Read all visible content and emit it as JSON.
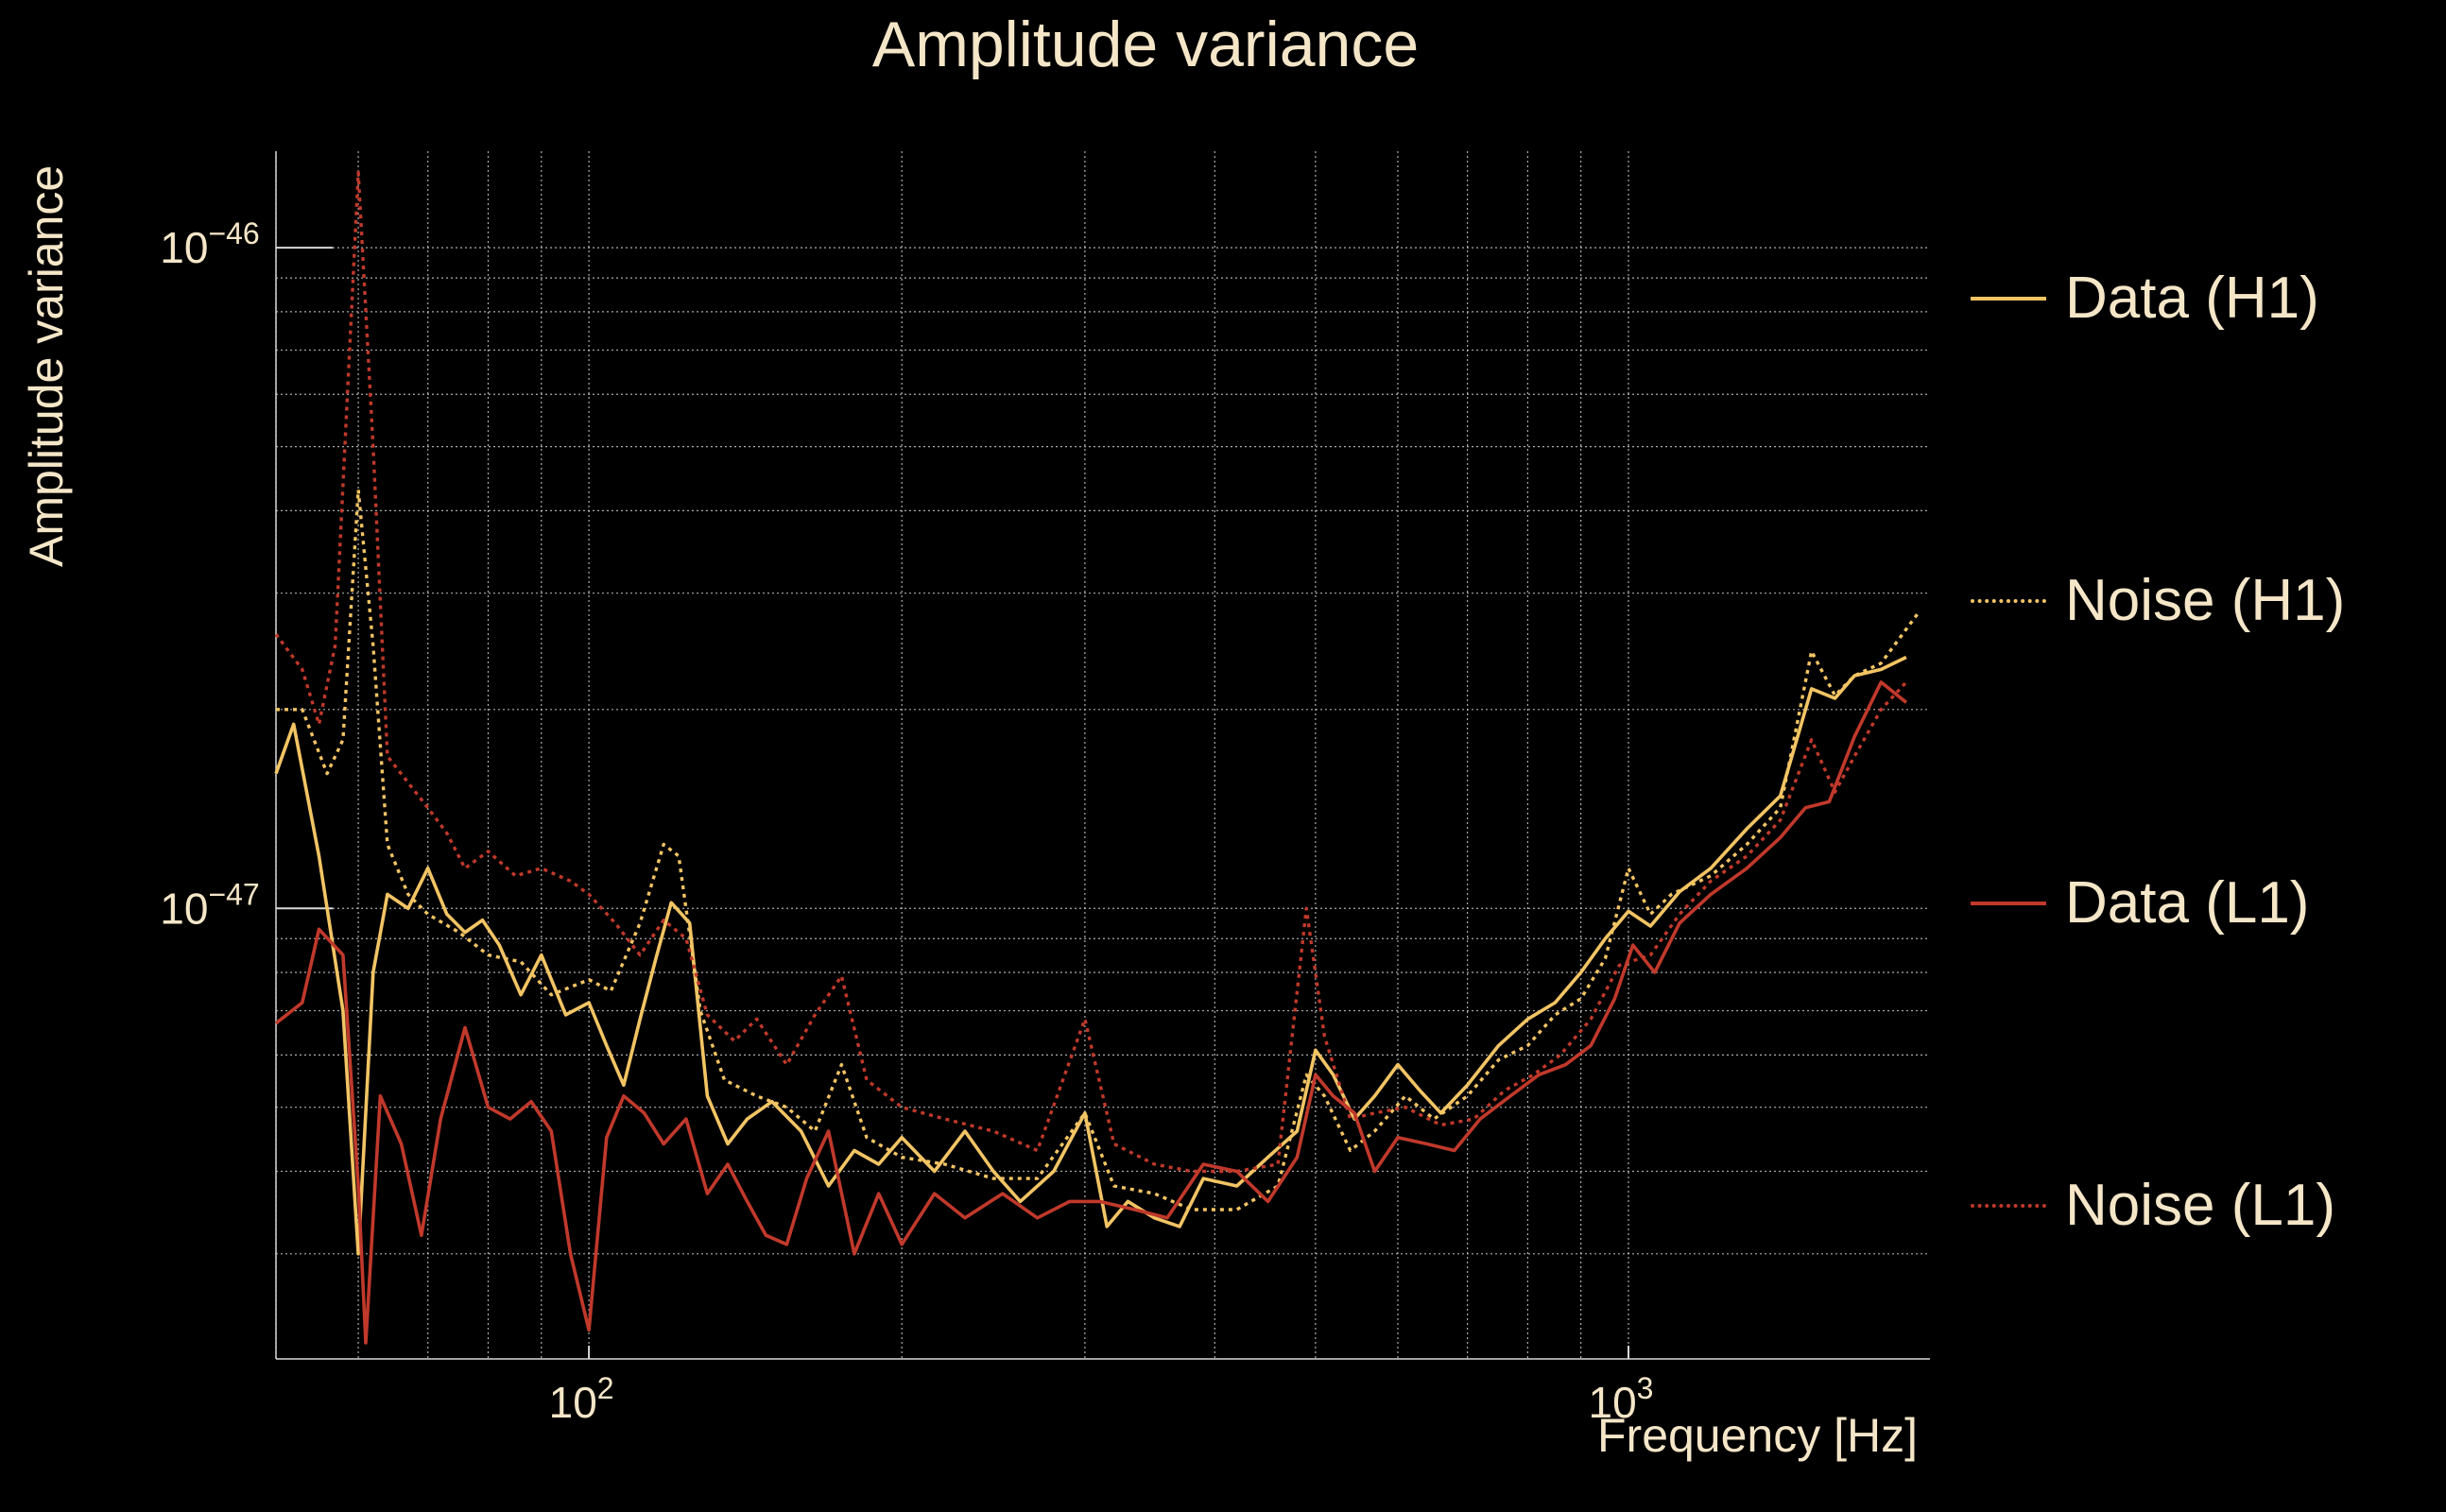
{
  "chart_data": {
    "type": "line",
    "title": "Amplitude variance",
    "xlabel": "Frequency [Hz]",
    "ylabel": "Amplitude variance",
    "xscale": "log",
    "yscale": "log",
    "xlim": [
      50,
      1950
    ],
    "ylim": [
      2.08e-48,
      1.4e-46
    ],
    "x_ticks": [
      {
        "value": 100,
        "base": "10",
        "exp": "2"
      },
      {
        "value": 1000,
        "base": "10",
        "exp": "3"
      }
    ],
    "y_ticks": [
      {
        "value": 1e-47,
        "base": "10",
        "exp": "−47"
      },
      {
        "value": 1e-46,
        "base": "10",
        "exp": "−46"
      }
    ],
    "grid": true,
    "legend_position": "right",
    "series": [
      {
        "name": "Data (H1)",
        "color": "#f2c464",
        "dash": "solid",
        "points": [
          [
            50,
            1.6e-47
          ],
          [
            52,
            1.9e-47
          ],
          [
            55,
            1.2e-47
          ],
          [
            58,
            7e-48
          ],
          [
            60,
            3e-48
          ],
          [
            62,
            8e-48
          ],
          [
            64,
            1.05e-47
          ],
          [
            67,
            1e-47
          ],
          [
            70,
            1.15e-47
          ],
          [
            73,
            9.8e-48
          ],
          [
            76,
            9.2e-48
          ],
          [
            79,
            9.6e-48
          ],
          [
            82,
            8.8e-48
          ],
          [
            86,
            7.4e-48
          ],
          [
            90,
            8.5e-48
          ],
          [
            95,
            6.9e-48
          ],
          [
            100,
            7.2e-48
          ],
          [
            104,
            6.2e-48
          ],
          [
            108,
            5.4e-48
          ],
          [
            112,
            6.8e-48
          ],
          [
            116,
            8.4e-48
          ],
          [
            120,
            1.02e-47
          ],
          [
            125,
            9.5e-48
          ],
          [
            130,
            5.2e-48
          ],
          [
            136,
            4.4e-48
          ],
          [
            142,
            4.8e-48
          ],
          [
            150,
            5.1e-48
          ],
          [
            160,
            4.6e-48
          ],
          [
            170,
            3.8e-48
          ],
          [
            180,
            4.3e-48
          ],
          [
            190,
            4.1e-48
          ],
          [
            200,
            4.5e-48
          ],
          [
            215,
            4e-48
          ],
          [
            230,
            4.6e-48
          ],
          [
            245,
            4e-48
          ],
          [
            260,
            3.6e-48
          ],
          [
            280,
            4e-48
          ],
          [
            300,
            4.9e-48
          ],
          [
            315,
            3.3e-48
          ],
          [
            330,
            3.6e-48
          ],
          [
            350,
            3.4e-48
          ],
          [
            370,
            3.3e-48
          ],
          [
            390,
            3.9e-48
          ],
          [
            420,
            3.8e-48
          ],
          [
            450,
            4.2e-48
          ],
          [
            480,
            4.6e-48
          ],
          [
            500,
            6.1e-48
          ],
          [
            520,
            5.6e-48
          ],
          [
            545,
            4.8e-48
          ],
          [
            570,
            5.2e-48
          ],
          [
            600,
            5.8e-48
          ],
          [
            630,
            5.3e-48
          ],
          [
            660,
            4.9e-48
          ],
          [
            700,
            5.4e-48
          ],
          [
            750,
            6.2e-48
          ],
          [
            800,
            6.8e-48
          ],
          [
            850,
            7.2e-48
          ],
          [
            900,
            8e-48
          ],
          [
            950,
            9e-48
          ],
          [
            1000,
            9.9e-48
          ],
          [
            1050,
            9.4e-48
          ],
          [
            1120,
            1.06e-47
          ],
          [
            1200,
            1.15e-47
          ],
          [
            1300,
            1.32e-47
          ],
          [
            1400,
            1.48e-47
          ],
          [
            1500,
            2.15e-47
          ],
          [
            1580,
            2.08e-47
          ],
          [
            1650,
            2.25e-47
          ],
          [
            1750,
            2.3e-47
          ],
          [
            1850,
            2.4e-47
          ]
        ]
      },
      {
        "name": "Noise (H1)",
        "color": "#f2c464",
        "dash": "dotted",
        "points": [
          [
            50,
            2e-47
          ],
          [
            53,
            2e-47
          ],
          [
            56,
            1.6e-47
          ],
          [
            58,
            1.8e-47
          ],
          [
            60,
            4.3e-47
          ],
          [
            62,
            2.5e-47
          ],
          [
            64,
            1.25e-47
          ],
          [
            67,
            1.05e-47
          ],
          [
            70,
            9.8e-48
          ],
          [
            75,
            9.2e-48
          ],
          [
            80,
            8.5e-48
          ],
          [
            86,
            8.3e-48
          ],
          [
            92,
            7.4e-48
          ],
          [
            100,
            7.8e-48
          ],
          [
            105,
            7.5e-48
          ],
          [
            112,
            9.5e-48
          ],
          [
            118,
            1.25e-47
          ],
          [
            122,
            1.2e-47
          ],
          [
            128,
            7e-48
          ],
          [
            135,
            5.5e-48
          ],
          [
            145,
            5.2e-48
          ],
          [
            155,
            5e-48
          ],
          [
            165,
            4.6e-48
          ],
          [
            175,
            5.8e-48
          ],
          [
            185,
            4.5e-48
          ],
          [
            200,
            4.2e-48
          ],
          [
            220,
            4.1e-48
          ],
          [
            245,
            3.9e-48
          ],
          [
            270,
            3.9e-48
          ],
          [
            300,
            4.9e-48
          ],
          [
            320,
            3.8e-48
          ],
          [
            350,
            3.7e-48
          ],
          [
            380,
            3.5e-48
          ],
          [
            420,
            3.5e-48
          ],
          [
            460,
            3.8e-48
          ],
          [
            490,
            5.6e-48
          ],
          [
            510,
            5.2e-48
          ],
          [
            540,
            4.3e-48
          ],
          [
            570,
            4.6e-48
          ],
          [
            610,
            5.2e-48
          ],
          [
            650,
            4.8e-48
          ],
          [
            700,
            5.2e-48
          ],
          [
            750,
            5.9e-48
          ],
          [
            800,
            6.2e-48
          ],
          [
            850,
            6.9e-48
          ],
          [
            900,
            7.3e-48
          ],
          [
            950,
            8.4e-48
          ],
          [
            1000,
            1.15e-47
          ],
          [
            1050,
            9.8e-48
          ],
          [
            1100,
            1.05e-47
          ],
          [
            1200,
            1.12e-47
          ],
          [
            1300,
            1.25e-47
          ],
          [
            1400,
            1.42e-47
          ],
          [
            1500,
            2.45e-47
          ],
          [
            1580,
            2.1e-47
          ],
          [
            1650,
            2.25e-47
          ],
          [
            1750,
            2.35e-47
          ],
          [
            1900,
            2.8e-47
          ]
        ]
      },
      {
        "name": "Data (L1)",
        "color": "#c0392b",
        "dash": "solid",
        "points": [
          [
            50,
            6.7e-48
          ],
          [
            53,
            7.2e-48
          ],
          [
            55,
            9.3e-48
          ],
          [
            58,
            8.5e-48
          ],
          [
            60,
            3.8e-48
          ],
          [
            61,
            2.2e-48
          ],
          [
            63,
            5.2e-48
          ],
          [
            66,
            4.4e-48
          ],
          [
            69,
            3.2e-48
          ],
          [
            72,
            4.8e-48
          ],
          [
            76,
            6.6e-48
          ],
          [
            80,
            5e-48
          ],
          [
            84,
            4.8e-48
          ],
          [
            88,
            5.1e-48
          ],
          [
            92,
            4.6e-48
          ],
          [
            96,
            3e-48
          ],
          [
            100,
            2.3e-48
          ],
          [
            104,
            4.5e-48
          ],
          [
            108,
            5.2e-48
          ],
          [
            113,
            4.9e-48
          ],
          [
            118,
            4.4e-48
          ],
          [
            124,
            4.8e-48
          ],
          [
            130,
            3.7e-48
          ],
          [
            136,
            4.1e-48
          ],
          [
            142,
            3.6e-48
          ],
          [
            148,
            3.2e-48
          ],
          [
            155,
            3.1e-48
          ],
          [
            162,
            3.9e-48
          ],
          [
            170,
            4.6e-48
          ],
          [
            180,
            3e-48
          ],
          [
            190,
            3.7e-48
          ],
          [
            200,
            3.1e-48
          ],
          [
            215,
            3.7e-48
          ],
          [
            230,
            3.4e-48
          ],
          [
            250,
            3.7e-48
          ],
          [
            270,
            3.4e-48
          ],
          [
            290,
            3.6e-48
          ],
          [
            310,
            3.6e-48
          ],
          [
            335,
            3.5e-48
          ],
          [
            360,
            3.4e-48
          ],
          [
            390,
            4.1e-48
          ],
          [
            420,
            4e-48
          ],
          [
            450,
            3.6e-48
          ],
          [
            480,
            4.2e-48
          ],
          [
            500,
            5.6e-48
          ],
          [
            520,
            5.2e-48
          ],
          [
            545,
            4.9e-48
          ],
          [
            570,
            4e-48
          ],
          [
            600,
            4.5e-48
          ],
          [
            640,
            4.4e-48
          ],
          [
            680,
            4.3e-48
          ],
          [
            720,
            4.8e-48
          ],
          [
            770,
            5.2e-48
          ],
          [
            820,
            5.6e-48
          ],
          [
            870,
            5.8e-48
          ],
          [
            920,
            6.2e-48
          ],
          [
            970,
            7.3e-48
          ],
          [
            1010,
            8.8e-48
          ],
          [
            1060,
            8e-48
          ],
          [
            1120,
            9.5e-48
          ],
          [
            1200,
            1.05e-47
          ],
          [
            1300,
            1.15e-47
          ],
          [
            1400,
            1.28e-47
          ],
          [
            1480,
            1.42e-47
          ],
          [
            1560,
            1.45e-47
          ],
          [
            1650,
            1.82e-47
          ],
          [
            1750,
            2.2e-47
          ],
          [
            1850,
            2.05e-47
          ]
        ]
      },
      {
        "name": "Noise (L1)",
        "color": "#c0392b",
        "dash": "dotted",
        "points": [
          [
            50,
            2.6e-47
          ],
          [
            53,
            2.3e-47
          ],
          [
            55,
            1.9e-47
          ],
          [
            57,
            2.5e-47
          ],
          [
            60,
            1.3e-46
          ],
          [
            62,
            5e-47
          ],
          [
            64,
            1.7e-47
          ],
          [
            67,
            1.55e-47
          ],
          [
            70,
            1.42e-47
          ],
          [
            73,
            1.3e-47
          ],
          [
            76,
            1.15e-47
          ],
          [
            80,
            1.22e-47
          ],
          [
            85,
            1.12e-47
          ],
          [
            90,
            1.15e-47
          ],
          [
            96,
            1.1e-47
          ],
          [
            100,
            1.05e-47
          ],
          [
            106,
            9.5e-48
          ],
          [
            112,
            8.5e-48
          ],
          [
            118,
            9.6e-48
          ],
          [
            124,
            9e-48
          ],
          [
            130,
            6.9e-48
          ],
          [
            138,
            6.3e-48
          ],
          [
            145,
            6.8e-48
          ],
          [
            155,
            5.8e-48
          ],
          [
            165,
            6.9e-48
          ],
          [
            175,
            7.9e-48
          ],
          [
            185,
            5.5e-48
          ],
          [
            200,
            5e-48
          ],
          [
            220,
            4.8e-48
          ],
          [
            245,
            4.6e-48
          ],
          [
            270,
            4.3e-48
          ],
          [
            300,
            6.8e-48
          ],
          [
            320,
            4.4e-48
          ],
          [
            350,
            4.1e-48
          ],
          [
            380,
            4e-48
          ],
          [
            420,
            4e-48
          ],
          [
            460,
            4.1e-48
          ],
          [
            490,
            1e-47
          ],
          [
            510,
            6.4e-48
          ],
          [
            540,
            4.8e-48
          ],
          [
            570,
            4.9e-48
          ],
          [
            610,
            5e-48
          ],
          [
            660,
            4.7e-48
          ],
          [
            710,
            4.8e-48
          ],
          [
            760,
            5.3e-48
          ],
          [
            810,
            5.6e-48
          ],
          [
            860,
            6e-48
          ],
          [
            920,
            6.8e-48
          ],
          [
            980,
            8.2e-48
          ],
          [
            1050,
            8.5e-48
          ],
          [
            1120,
            9.8e-48
          ],
          [
            1200,
            1.1e-47
          ],
          [
            1300,
            1.2e-47
          ],
          [
            1400,
            1.36e-47
          ],
          [
            1500,
            1.8e-47
          ],
          [
            1580,
            1.5e-47
          ],
          [
            1650,
            1.7e-47
          ],
          [
            1750,
            2e-47
          ],
          [
            1850,
            2.2e-47
          ]
        ]
      }
    ]
  }
}
